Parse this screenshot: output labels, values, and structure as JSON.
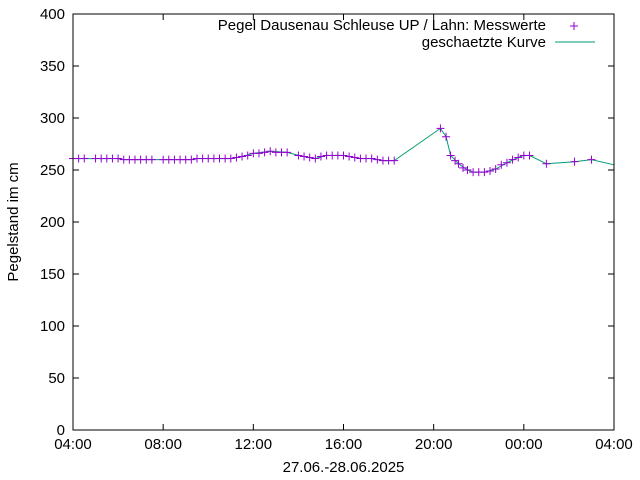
{
  "chart_data": {
    "type": "line",
    "title": "",
    "xlabel": "27.06.-28.06.2025",
    "ylabel": "Pegelstand im cm",
    "x_range_hours": [
      4,
      28
    ],
    "ylim": [
      0,
      400
    ],
    "x_ticks": [
      {
        "value": 4,
        "label": "04:00"
      },
      {
        "value": 8,
        "label": "08:00"
      },
      {
        "value": 12,
        "label": "12:00"
      },
      {
        "value": 16,
        "label": "16:00"
      },
      {
        "value": 20,
        "label": "20:00"
      },
      {
        "value": 24,
        "label": "00:00"
      },
      {
        "value": 28,
        "label": "04:00"
      }
    ],
    "y_ticks": [
      {
        "value": 0,
        "label": "0"
      },
      {
        "value": 50,
        "label": "50"
      },
      {
        "value": 100,
        "label": "100"
      },
      {
        "value": 150,
        "label": "150"
      },
      {
        "value": 200,
        "label": "200"
      },
      {
        "value": 250,
        "label": "250"
      },
      {
        "value": 300,
        "label": "300"
      },
      {
        "value": 350,
        "label": "350"
      },
      {
        "value": 400,
        "label": "400"
      }
    ],
    "legend_position": "top-right",
    "series": [
      {
        "name": "Pegel Dausenau Schleuse UP / Lahn: Messwerte",
        "style": "points",
        "marker": "+",
        "color": "#9400d3",
        "points": [
          [
            4.0,
            261
          ],
          [
            4.25,
            261
          ],
          [
            4.5,
            261
          ],
          [
            5.0,
            261
          ],
          [
            5.25,
            261
          ],
          [
            5.5,
            261
          ],
          [
            5.75,
            261
          ],
          [
            6.0,
            261
          ],
          [
            6.25,
            260
          ],
          [
            6.5,
            260
          ],
          [
            6.75,
            260
          ],
          [
            7.0,
            260
          ],
          [
            7.25,
            260
          ],
          [
            7.5,
            260
          ],
          [
            8.0,
            260
          ],
          [
            8.25,
            260
          ],
          [
            8.5,
            260
          ],
          [
            8.75,
            260
          ],
          [
            9.0,
            260
          ],
          [
            9.25,
            260
          ],
          [
            9.5,
            261
          ],
          [
            9.75,
            261
          ],
          [
            10.0,
            261
          ],
          [
            10.25,
            261
          ],
          [
            10.5,
            261
          ],
          [
            10.75,
            261
          ],
          [
            11.0,
            261
          ],
          [
            11.25,
            262
          ],
          [
            11.5,
            263
          ],
          [
            11.75,
            264
          ],
          [
            12.0,
            266
          ],
          [
            12.25,
            266
          ],
          [
            12.5,
            267
          ],
          [
            12.75,
            268
          ],
          [
            13.0,
            267
          ],
          [
            13.25,
            267
          ],
          [
            13.5,
            267
          ],
          [
            14.0,
            264
          ],
          [
            14.25,
            263
          ],
          [
            14.5,
            262
          ],
          [
            14.75,
            261
          ],
          [
            15.0,
            263
          ],
          [
            15.25,
            264
          ],
          [
            15.5,
            264
          ],
          [
            15.75,
            264
          ],
          [
            16.0,
            264
          ],
          [
            16.25,
            263
          ],
          [
            16.5,
            262
          ],
          [
            16.75,
            261
          ],
          [
            17.0,
            261
          ],
          [
            17.25,
            261
          ],
          [
            17.5,
            260
          ],
          [
            17.75,
            259
          ],
          [
            18.0,
            259
          ],
          [
            18.25,
            259
          ],
          [
            20.3,
            290
          ],
          [
            20.55,
            282
          ],
          [
            20.75,
            264
          ],
          [
            20.95,
            259
          ],
          [
            21.1,
            256
          ],
          [
            21.3,
            252
          ],
          [
            21.5,
            250
          ],
          [
            21.75,
            248
          ],
          [
            22.0,
            248
          ],
          [
            22.25,
            248
          ],
          [
            22.5,
            249
          ],
          [
            22.75,
            251
          ],
          [
            23.0,
            255
          ],
          [
            23.25,
            257
          ],
          [
            23.5,
            260
          ],
          [
            23.75,
            262
          ],
          [
            24.0,
            264
          ],
          [
            24.25,
            264
          ],
          [
            25.0,
            256
          ],
          [
            26.25,
            258
          ],
          [
            27.0,
            260
          ]
        ]
      },
      {
        "name": "geschaetzte Kurve",
        "style": "line",
        "color": "#009e73",
        "points": [
          [
            4.0,
            261
          ],
          [
            6.0,
            261
          ],
          [
            6.25,
            260
          ],
          [
            9.25,
            260
          ],
          [
            9.5,
            261
          ],
          [
            11.0,
            261
          ],
          [
            11.5,
            263
          ],
          [
            12.0,
            266
          ],
          [
            12.75,
            268
          ],
          [
            13.5,
            267
          ],
          [
            14.0,
            264
          ],
          [
            14.75,
            261
          ],
          [
            15.25,
            264
          ],
          [
            16.0,
            264
          ],
          [
            16.75,
            261
          ],
          [
            17.25,
            261
          ],
          [
            17.75,
            259
          ],
          [
            18.25,
            259
          ],
          [
            20.3,
            290
          ],
          [
            20.55,
            282
          ],
          [
            20.75,
            264
          ],
          [
            21.1,
            256
          ],
          [
            21.5,
            250
          ],
          [
            21.75,
            248
          ],
          [
            22.25,
            248
          ],
          [
            22.75,
            251
          ],
          [
            23.25,
            257
          ],
          [
            23.75,
            262
          ],
          [
            24.0,
            264
          ],
          [
            24.25,
            264
          ],
          [
            25.0,
            256
          ],
          [
            26.25,
            258
          ],
          [
            27.0,
            260
          ],
          [
            28.0,
            255
          ]
        ]
      }
    ]
  }
}
